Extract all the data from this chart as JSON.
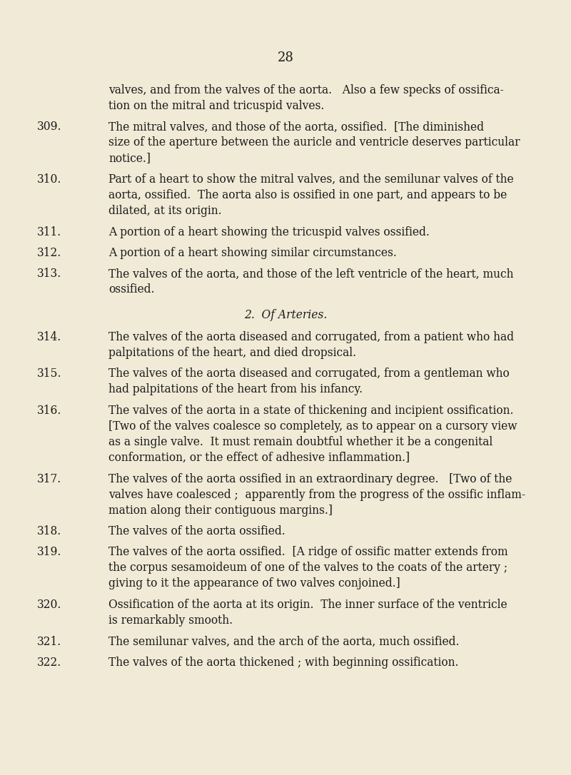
{
  "background_color": "#f0ead6",
  "page_number": "28",
  "page_number_fontsize": 13,
  "text_color": "#1a1a1a",
  "font_family": "DejaVu Serif",
  "body_fontsize": 11.2,
  "entries": [
    {
      "type": "continuation",
      "lines": [
        "valves, and from the valves of the aorta.   Also a few specks of ossifica-",
        "tion on the mitral and tricuspid valves."
      ]
    },
    {
      "type": "numbered",
      "number": "309.",
      "lines": [
        "The mitral valves, and those of the aorta, ossified.  [The diminished",
        "size of the aperture between the auricle and ventricle deserves particular",
        "notice.]"
      ]
    },
    {
      "type": "numbered",
      "number": "310.",
      "lines": [
        "Part of a heart to show the mitral valves, and the semilunar valves of the",
        "aorta, ossified.  The aorta also is ossified in one part, and appears to be",
        "dilated, at its origin."
      ]
    },
    {
      "type": "numbered",
      "number": "311.",
      "lines": [
        "A portion of a heart showing the tricuspid valves ossified."
      ]
    },
    {
      "type": "numbered",
      "number": "312.",
      "lines": [
        "A portion of a heart showing similar circumstances."
      ]
    },
    {
      "type": "numbered",
      "number": "313.",
      "lines": [
        "The valves of the aorta, and those of the left ventricle of the heart, much",
        "ossified."
      ]
    },
    {
      "type": "section_header",
      "text": "2.  Of Arteries."
    },
    {
      "type": "numbered",
      "number": "314.",
      "lines": [
        "The valves of the aorta diseased and corrugated, from a patient who had",
        "palpitations of the heart, and died dropsical."
      ]
    },
    {
      "type": "numbered",
      "number": "315.",
      "lines": [
        "The valves of the aorta diseased and corrugated, from a gentleman who",
        "had palpitations of the heart from his infancy."
      ]
    },
    {
      "type": "numbered",
      "number": "316.",
      "lines": [
        "The valves of the aorta in a state of thickening and incipient ossification.",
        "[Two of the valves coalesce so completely, as to appear on a cursory view",
        "as a single valve.  It must remain doubtful whether it be a congenital",
        "conformation, or the effect of adhesive inflammation.]"
      ]
    },
    {
      "type": "numbered",
      "number": "317.",
      "lines": [
        "The valves of the aorta ossified in an extraordinary degree.   [Two of the",
        "valves have coalesced ;  apparently from the progress of the ossific inflam-",
        "mation along their contiguous margins.]"
      ]
    },
    {
      "type": "numbered",
      "number": "318.",
      "lines": [
        "The valves of the aorta ossified."
      ]
    },
    {
      "type": "numbered",
      "number": "319.",
      "lines": [
        "The valves of the aorta ossified.  [A ridge of ossific matter extends from",
        "the corpus sesamoideum of one of the valves to the coats of the artery ;",
        "giving to it the appearance of two valves conjoined.]"
      ]
    },
    {
      "type": "numbered",
      "number": "320.",
      "lines": [
        "Ossification of the aorta at its origin.  The inner surface of the ventricle",
        "is remarkably smooth."
      ]
    },
    {
      "type": "numbered",
      "number": "321.",
      "lines": [
        "The semilunar valves, and the arch of the aorta, much ossified."
      ]
    },
    {
      "type": "numbered",
      "number": "322.",
      "lines": [
        "The valves of the aorta thickened ; with beginning ossification."
      ]
    }
  ]
}
